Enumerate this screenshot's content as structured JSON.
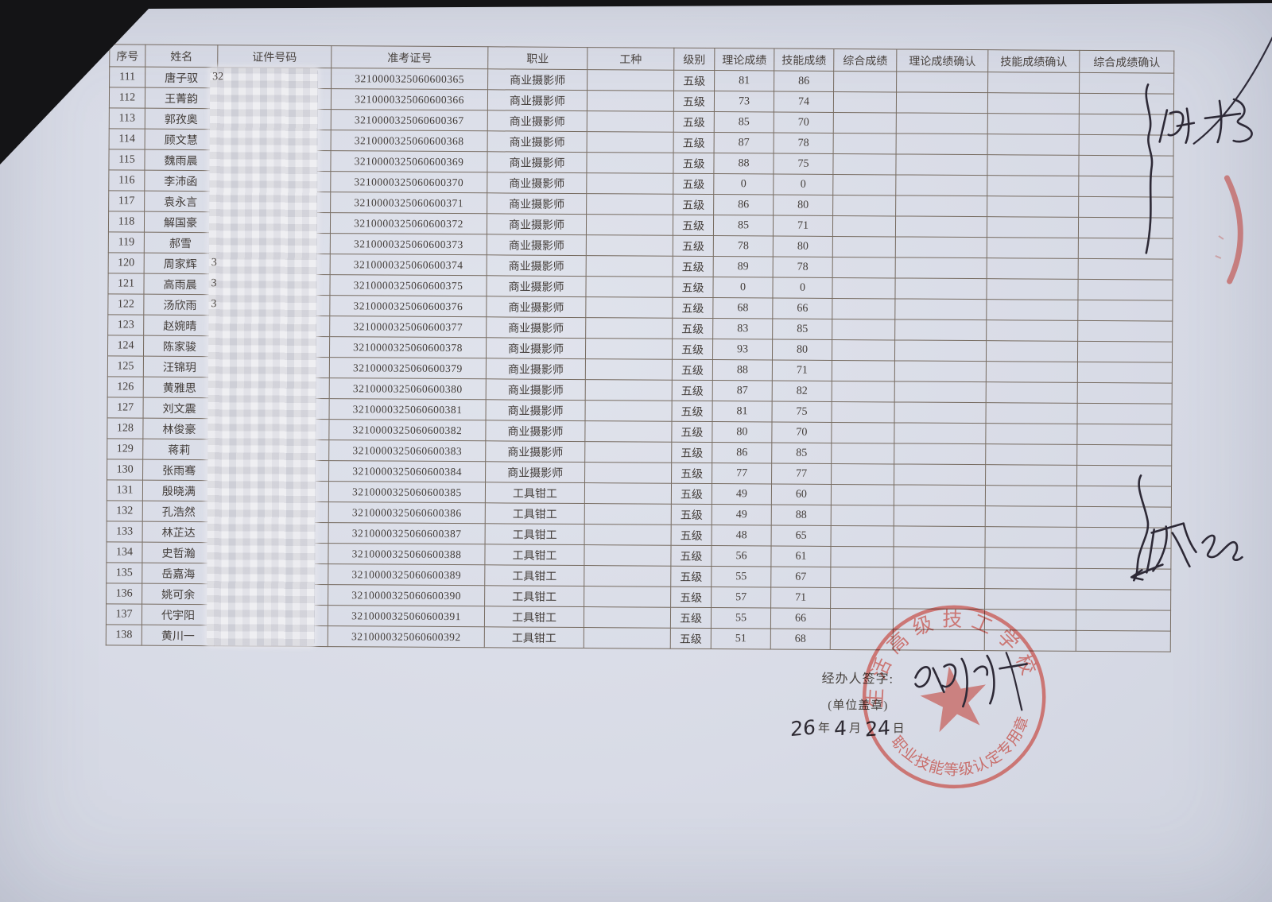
{
  "document": {
    "columns": [
      "序号",
      "姓名",
      "证件号码",
      "准考证号",
      "职业",
      "工种",
      "级别",
      "理论成绩",
      "技能成绩",
      "综合成绩",
      "理论成绩确认",
      "技能成绩确认",
      "综合成绩确认"
    ],
    "column_keys": [
      "no",
      "name",
      "id",
      "ticket",
      "occupation",
      "work_type",
      "level",
      "theory",
      "skill",
      "comprehensive",
      "theory_confirm",
      "skill_confirm",
      "comprehensive_confirm"
    ],
    "rows": [
      {
        "no": "111",
        "name": "唐子驭",
        "id": "",
        "id_prefix": "32",
        "ticket": "3210000325060600365",
        "occupation": "商业摄影师",
        "work_type": "",
        "level": "五级",
        "theory": "81",
        "skill": "86",
        "comprehensive": "",
        "theory_confirm": "",
        "skill_confirm": "",
        "comprehensive_confirm": ""
      },
      {
        "no": "112",
        "name": "王菁韵",
        "id": "",
        "id_prefix": "",
        "ticket": "3210000325060600366",
        "occupation": "商业摄影师",
        "work_type": "",
        "level": "五级",
        "theory": "73",
        "skill": "74",
        "comprehensive": "",
        "theory_confirm": "",
        "skill_confirm": "",
        "comprehensive_confirm": ""
      },
      {
        "no": "113",
        "name": "郭孜奥",
        "id": "",
        "id_prefix": "",
        "ticket": "3210000325060600367",
        "occupation": "商业摄影师",
        "work_type": "",
        "level": "五级",
        "theory": "85",
        "skill": "70",
        "comprehensive": "",
        "theory_confirm": "",
        "skill_confirm": "",
        "comprehensive_confirm": ""
      },
      {
        "no": "114",
        "name": "顾文慧",
        "id": "",
        "id_prefix": "",
        "ticket": "3210000325060600368",
        "occupation": "商业摄影师",
        "work_type": "",
        "level": "五级",
        "theory": "87",
        "skill": "78",
        "comprehensive": "",
        "theory_confirm": "",
        "skill_confirm": "",
        "comprehensive_confirm": ""
      },
      {
        "no": "115",
        "name": "魏雨晨",
        "id": "",
        "id_prefix": "",
        "ticket": "3210000325060600369",
        "occupation": "商业摄影师",
        "work_type": "",
        "level": "五级",
        "theory": "88",
        "skill": "75",
        "comprehensive": "",
        "theory_confirm": "",
        "skill_confirm": "",
        "comprehensive_confirm": ""
      },
      {
        "no": "116",
        "name": "李沛函",
        "id": "",
        "id_prefix": "",
        "ticket": "3210000325060600370",
        "occupation": "商业摄影师",
        "work_type": "",
        "level": "五级",
        "theory": "0",
        "skill": "0",
        "comprehensive": "",
        "theory_confirm": "",
        "skill_confirm": "",
        "comprehensive_confirm": ""
      },
      {
        "no": "117",
        "name": "袁永言",
        "id": "",
        "id_prefix": "",
        "ticket": "3210000325060600371",
        "occupation": "商业摄影师",
        "work_type": "",
        "level": "五级",
        "theory": "86",
        "skill": "80",
        "comprehensive": "",
        "theory_confirm": "",
        "skill_confirm": "",
        "comprehensive_confirm": ""
      },
      {
        "no": "118",
        "name": "解国豪",
        "id": "",
        "id_prefix": "",
        "ticket": "3210000325060600372",
        "occupation": "商业摄影师",
        "work_type": "",
        "level": "五级",
        "theory": "85",
        "skill": "71",
        "comprehensive": "",
        "theory_confirm": "",
        "skill_confirm": "",
        "comprehensive_confirm": ""
      },
      {
        "no": "119",
        "name": "郝雪",
        "id": "",
        "id_prefix": "",
        "ticket": "3210000325060600373",
        "occupation": "商业摄影师",
        "work_type": "",
        "level": "五级",
        "theory": "78",
        "skill": "80",
        "comprehensive": "",
        "theory_confirm": "",
        "skill_confirm": "",
        "comprehensive_confirm": ""
      },
      {
        "no": "120",
        "name": "周家辉",
        "id": "",
        "id_prefix": "3",
        "ticket": "3210000325060600374",
        "occupation": "商业摄影师",
        "work_type": "",
        "level": "五级",
        "theory": "89",
        "skill": "78",
        "comprehensive": "",
        "theory_confirm": "",
        "skill_confirm": "",
        "comprehensive_confirm": ""
      },
      {
        "no": "121",
        "name": "高雨晨",
        "id": "",
        "id_prefix": "3",
        "ticket": "3210000325060600375",
        "occupation": "商业摄影师",
        "work_type": "",
        "level": "五级",
        "theory": "0",
        "skill": "0",
        "comprehensive": "",
        "theory_confirm": "",
        "skill_confirm": "",
        "comprehensive_confirm": ""
      },
      {
        "no": "122",
        "name": "汤欣雨",
        "id": "",
        "id_prefix": "3",
        "ticket": "3210000325060600376",
        "occupation": "商业摄影师",
        "work_type": "",
        "level": "五级",
        "theory": "68",
        "skill": "66",
        "comprehensive": "",
        "theory_confirm": "",
        "skill_confirm": "",
        "comprehensive_confirm": ""
      },
      {
        "no": "123",
        "name": "赵婉晴",
        "id": "",
        "id_prefix": "",
        "ticket": "3210000325060600377",
        "occupation": "商业摄影师",
        "work_type": "",
        "level": "五级",
        "theory": "83",
        "skill": "85",
        "comprehensive": "",
        "theory_confirm": "",
        "skill_confirm": "",
        "comprehensive_confirm": ""
      },
      {
        "no": "124",
        "name": "陈家骏",
        "id": "",
        "id_prefix": "",
        "ticket": "3210000325060600378",
        "occupation": "商业摄影师",
        "work_type": "",
        "level": "五级",
        "theory": "93",
        "skill": "80",
        "comprehensive": "",
        "theory_confirm": "",
        "skill_confirm": "",
        "comprehensive_confirm": ""
      },
      {
        "no": "125",
        "name": "汪锦玥",
        "id": "",
        "id_prefix": "",
        "ticket": "3210000325060600379",
        "occupation": "商业摄影师",
        "work_type": "",
        "level": "五级",
        "theory": "88",
        "skill": "71",
        "comprehensive": "",
        "theory_confirm": "",
        "skill_confirm": "",
        "comprehensive_confirm": ""
      },
      {
        "no": "126",
        "name": "黄雅思",
        "id": "",
        "id_prefix": "",
        "ticket": "3210000325060600380",
        "occupation": "商业摄影师",
        "work_type": "",
        "level": "五级",
        "theory": "87",
        "skill": "82",
        "comprehensive": "",
        "theory_confirm": "",
        "skill_confirm": "",
        "comprehensive_confirm": ""
      },
      {
        "no": "127",
        "name": "刘文震",
        "id": "",
        "id_prefix": "",
        "ticket": "3210000325060600381",
        "occupation": "商业摄影师",
        "work_type": "",
        "level": "五级",
        "theory": "81",
        "skill": "75",
        "comprehensive": "",
        "theory_confirm": "",
        "skill_confirm": "",
        "comprehensive_confirm": ""
      },
      {
        "no": "128",
        "name": "林俊豪",
        "id": "",
        "id_prefix": "",
        "ticket": "3210000325060600382",
        "occupation": "商业摄影师",
        "work_type": "",
        "level": "五级",
        "theory": "80",
        "skill": "70",
        "comprehensive": "",
        "theory_confirm": "",
        "skill_confirm": "",
        "comprehensive_confirm": ""
      },
      {
        "no": "129",
        "name": "蒋莉",
        "id": "",
        "id_prefix": "",
        "ticket": "3210000325060600383",
        "occupation": "商业摄影师",
        "work_type": "",
        "level": "五级",
        "theory": "86",
        "skill": "85",
        "comprehensive": "",
        "theory_confirm": "",
        "skill_confirm": "",
        "comprehensive_confirm": ""
      },
      {
        "no": "130",
        "name": "张雨骞",
        "id": "",
        "id_prefix": "",
        "ticket": "3210000325060600384",
        "occupation": "商业摄影师",
        "work_type": "",
        "level": "五级",
        "theory": "77",
        "skill": "77",
        "comprehensive": "",
        "theory_confirm": "",
        "skill_confirm": "",
        "comprehensive_confirm": ""
      },
      {
        "no": "131",
        "name": "殷晓满",
        "id": "",
        "id_prefix": "",
        "ticket": "3210000325060600385",
        "occupation": "工具钳工",
        "work_type": "",
        "level": "五级",
        "theory": "49",
        "skill": "60",
        "comprehensive": "",
        "theory_confirm": "",
        "skill_confirm": "",
        "comprehensive_confirm": ""
      },
      {
        "no": "132",
        "name": "孔浩然",
        "id": "",
        "id_prefix": "",
        "ticket": "3210000325060600386",
        "occupation": "工具钳工",
        "work_type": "",
        "level": "五级",
        "theory": "49",
        "skill": "88",
        "comprehensive": "",
        "theory_confirm": "",
        "skill_confirm": "",
        "comprehensive_confirm": ""
      },
      {
        "no": "133",
        "name": "林芷达",
        "id": "",
        "id_prefix": "",
        "ticket": "3210000325060600387",
        "occupation": "工具钳工",
        "work_type": "",
        "level": "五级",
        "theory": "48",
        "skill": "65",
        "comprehensive": "",
        "theory_confirm": "",
        "skill_confirm": "",
        "comprehensive_confirm": ""
      },
      {
        "no": "134",
        "name": "史哲瀚",
        "id": "",
        "id_prefix": "",
        "ticket": "3210000325060600388",
        "occupation": "工具钳工",
        "work_type": "",
        "level": "五级",
        "theory": "56",
        "skill": "61",
        "comprehensive": "",
        "theory_confirm": "",
        "skill_confirm": "",
        "comprehensive_confirm": ""
      },
      {
        "no": "135",
        "name": "岳嘉海",
        "id": "",
        "id_prefix": "",
        "ticket": "3210000325060600389",
        "occupation": "工具钳工",
        "work_type": "",
        "level": "五级",
        "theory": "55",
        "skill": "67",
        "comprehensive": "",
        "theory_confirm": "",
        "skill_confirm": "",
        "comprehensive_confirm": ""
      },
      {
        "no": "136",
        "name": "姚可余",
        "id": "",
        "id_prefix": "",
        "ticket": "3210000325060600390",
        "occupation": "工具钳工",
        "work_type": "",
        "level": "五级",
        "theory": "57",
        "skill": "71",
        "comprehensive": "",
        "theory_confirm": "",
        "skill_confirm": "",
        "comprehensive_confirm": ""
      },
      {
        "no": "137",
        "name": "代宇阳",
        "id": "",
        "id_prefix": "",
        "ticket": "3210000325060600391",
        "occupation": "工具钳工",
        "work_type": "",
        "level": "五级",
        "theory": "55",
        "skill": "66",
        "comprehensive": "",
        "theory_confirm": "",
        "skill_confirm": "",
        "comprehensive_confirm": ""
      },
      {
        "no": "138",
        "name": "黄川一",
        "id": "",
        "id_prefix": "",
        "ticket": "3210000325060600392",
        "occupation": "工具钳工",
        "work_type": "",
        "level": "五级",
        "theory": "51",
        "skill": "68",
        "comprehensive": "",
        "theory_confirm": "",
        "skill_confirm": "",
        "comprehensive_confirm": ""
      }
    ],
    "footer": {
      "signature_label": "经办人签字:",
      "seal_label": "(单位盖章)",
      "date": {
        "year": "26",
        "year_unit": "年",
        "month": "4",
        "month_unit": "月",
        "day": "24",
        "day_unit": "日"
      }
    },
    "stamp": {
      "top_arc": "生活高级技工学校",
      "bottom_arc": "职业技能等级认定专用章",
      "color": "#c4463e"
    }
  }
}
